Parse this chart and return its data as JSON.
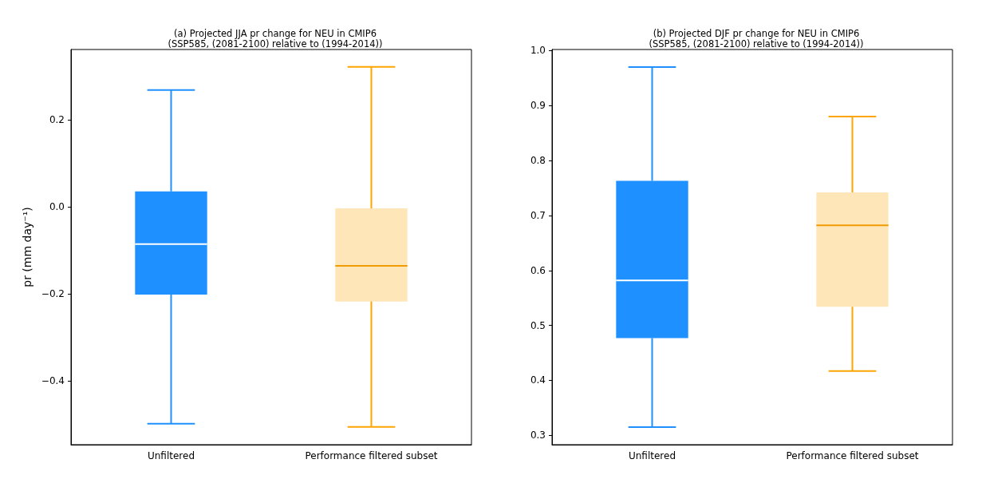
{
  "chart_data": [
    {
      "type": "box",
      "title": "(a) Projected JJA pr change for NEU in CMIP6\n(SSP585, (2081-2100) relative to (1994-2014))",
      "ylabel": "pr (mm day⁻¹)",
      "categories": [
        "Unfiltered",
        "Performance filtered subset"
      ],
      "colors": [
        "#1e90ff",
        "#ffa500"
      ],
      "boxes": [
        {
          "low": -0.499,
          "q1": -0.202,
          "median": -0.086,
          "q3": 0.035,
          "high": 0.268
        },
        {
          "low": -0.506,
          "q1": -0.218,
          "median": -0.136,
          "q3": -0.004,
          "high": 0.321
        }
      ],
      "ylim": [
        -0.547,
        0.361
      ],
      "yticks": [
        {
          "value": -0.4,
          "label": "−0.4"
        },
        {
          "value": -0.2,
          "label": "−0.2"
        },
        {
          "value": 0,
          "label": "0.0"
        },
        {
          "value": 0.2,
          "label": "0.2"
        }
      ]
    },
    {
      "type": "box",
      "title": "(b) Projected DJF pr change for NEU in CMIP6\n(SSP585, (2081-2100) relative to (1994-2014))",
      "categories": [
        "Unfiltered",
        "Performance filtered subset"
      ],
      "colors": [
        "#1e90ff",
        "#ffa500"
      ],
      "boxes": [
        {
          "low": 0.315,
          "q1": 0.477,
          "median": 0.582,
          "q3": 0.763,
          "high": 0.97
        },
        {
          "low": 0.417,
          "q1": 0.534,
          "median": 0.682,
          "q3": 0.742,
          "high": 0.88
        }
      ],
      "ylim": [
        0.283,
        1.002
      ],
      "yticks": [
        {
          "value": 0.3,
          "label": "0.3"
        },
        {
          "value": 0.4,
          "label": "0.4"
        },
        {
          "value": 0.5,
          "label": "0.5"
        },
        {
          "value": 0.6,
          "label": "0.6"
        },
        {
          "value": 0.7,
          "label": "0.7"
        },
        {
          "value": 0.8,
          "label": "0.8"
        },
        {
          "value": 0.9,
          "label": "0.9"
        },
        {
          "value": 1.0,
          "label": "1.0"
        }
      ]
    }
  ]
}
